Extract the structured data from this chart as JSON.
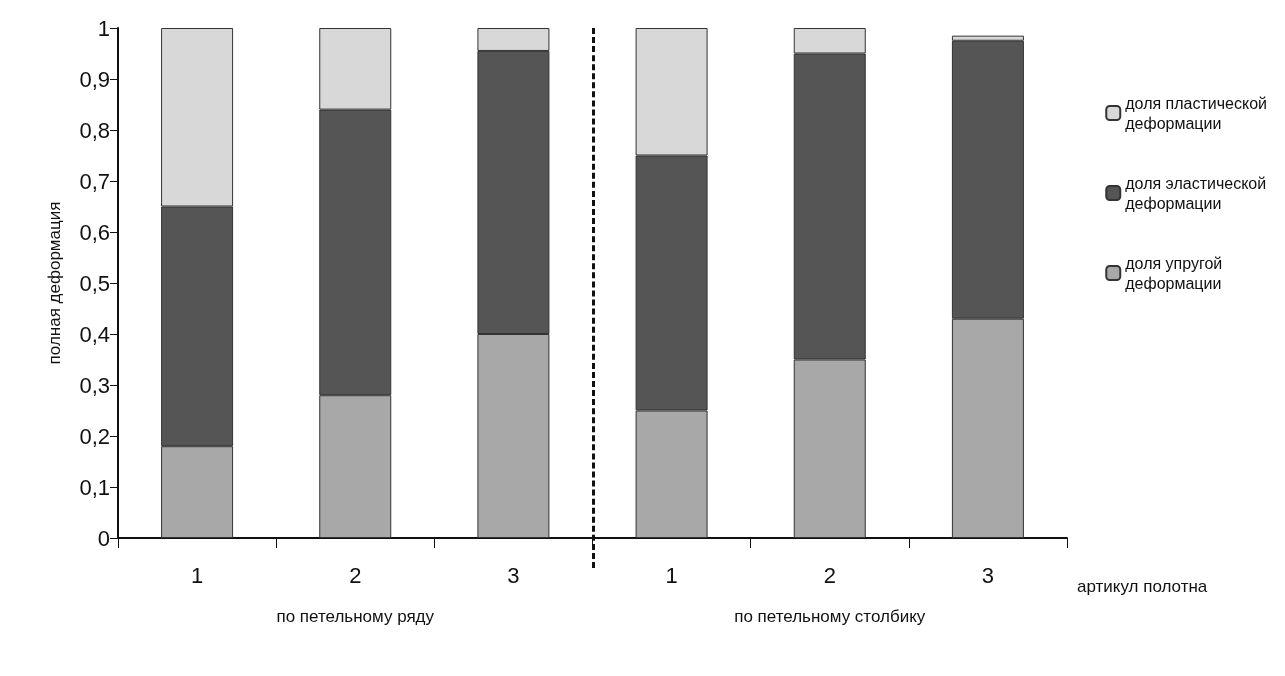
{
  "chart_data": {
    "type": "bar",
    "stacked": true,
    "ylabel": "полная деформация",
    "xlabel": "артикул полотна",
    "categories": [
      "1",
      "2",
      "3",
      "1",
      "2",
      "3"
    ],
    "series": [
      {
        "name": "доля упругой деформации",
        "color": "#a8a8a8",
        "values": [
          0.18,
          0.28,
          0.4,
          0.25,
          0.35,
          0.43
        ]
      },
      {
        "name": "доля эластической деформации",
        "color": "#555555",
        "values": [
          0.47,
          0.56,
          0.555,
          0.5,
          0.6,
          0.545
        ]
      },
      {
        "name": "доля пластической деформации",
        "color": "#d8d8d8",
        "values": [
          0.35,
          0.16,
          0.045,
          0.25,
          0.05,
          0.01
        ]
      }
    ],
    "ylim": [
      0,
      1
    ],
    "yticks": [
      0,
      {
        "value": 0.1,
        "label": "0,1"
      },
      {
        "value": 0.2,
        "label": "0,2"
      },
      {
        "value": 0.3,
        "label": "0,3"
      },
      {
        "value": 0.4,
        "label": "0,4"
      },
      {
        "value": 0.5,
        "label": "0,5"
      },
      {
        "value": 0.6,
        "label": "0,6"
      },
      {
        "value": 0.7,
        "label": "0,7"
      },
      {
        "value": 0.8,
        "label": "0,8"
      },
      {
        "value": 0.9,
        "label": "0,9"
      },
      1
    ],
    "annotations": [
      "по петельному ряду",
      "по петельному столбику"
    ],
    "legend": "right",
    "grid": false
  }
}
